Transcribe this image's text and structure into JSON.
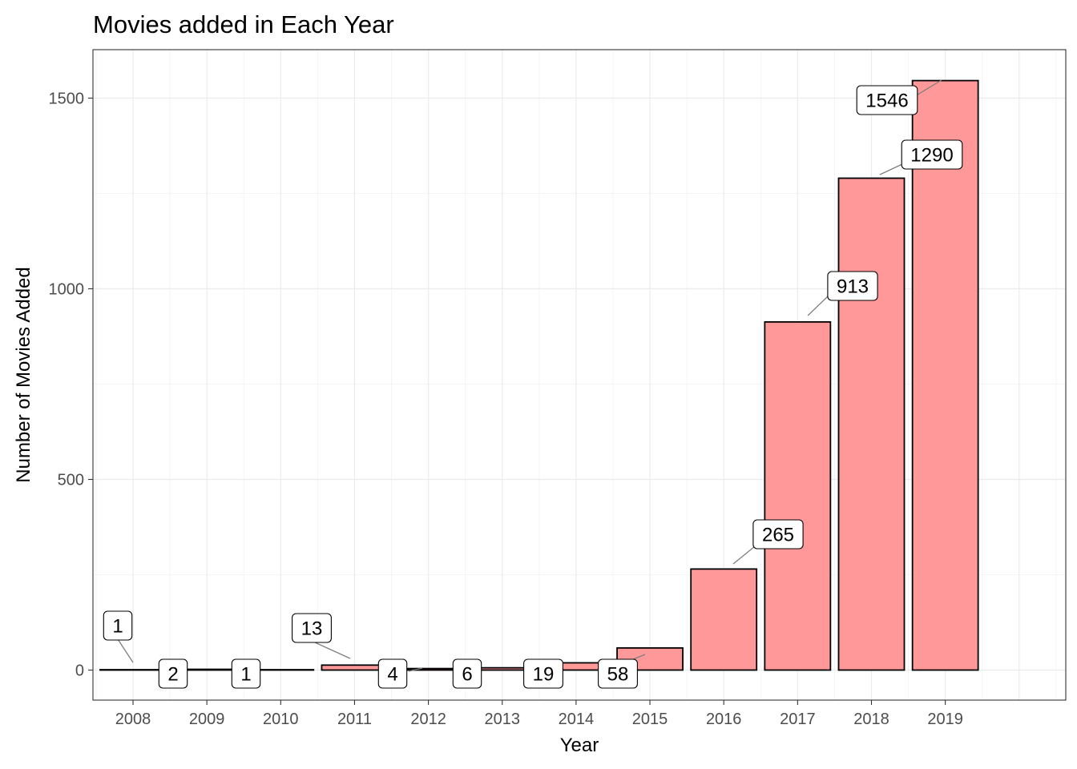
{
  "chart_data": {
    "type": "bar",
    "title": "Movies added in Each Year",
    "xlabel": "Year",
    "ylabel": "Number of Movies Added",
    "categories": [
      "2008",
      "2009",
      "2010",
      "2011",
      "2012",
      "2013",
      "2014",
      "2015",
      "2016",
      "2017",
      "2018",
      "2019"
    ],
    "values": [
      1,
      2,
      1,
      13,
      4,
      6,
      19,
      58,
      265,
      913,
      1290,
      1546
    ],
    "data_labels": [
      "1",
      "2",
      "1",
      "13",
      "4",
      "6",
      "19",
      "58",
      "265",
      "913",
      "1290",
      "1546"
    ],
    "yticks": [
      0,
      500,
      1000,
      1500
    ],
    "ytick_labels": [
      "0",
      "500",
      "1000",
      "1500"
    ],
    "ylim": [
      -77.3,
      1623.3
    ],
    "grid": true,
    "colors": {
      "bar_fill": "#ff9999",
      "bar_outline": "#000000",
      "grid": "#ebebeb"
    }
  }
}
